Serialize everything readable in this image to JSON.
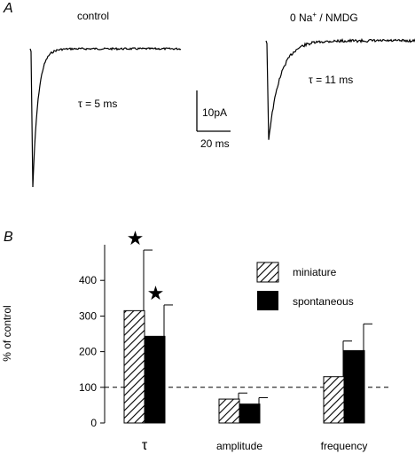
{
  "panel_a": {
    "label": "A",
    "control_label": "control",
    "treatment_label_prefix": "0 Na",
    "treatment_label_sup": "+",
    "treatment_label_suffix": " / NMDG",
    "tau_control": "τ = 5 ms",
    "tau_treatment": "τ = 11 ms",
    "scale_current": "10pA",
    "scale_time": "20 ms"
  },
  "panel_b": {
    "label": "B"
  },
  "chart_data": {
    "type": "bar",
    "ylabel": "% of control",
    "ylim": [
      0,
      500
    ],
    "yticks": [
      0,
      100,
      200,
      300,
      400
    ],
    "categories": [
      "τ",
      "amplitude",
      "frequency"
    ],
    "series": [
      {
        "name": "miniature",
        "values": [
          315,
          67,
          130
        ],
        "errors": [
          170,
          17,
          100
        ],
        "pattern": "hatched",
        "significant": [
          true,
          false,
          false
        ]
      },
      {
        "name": "spontaneous",
        "values": [
          243,
          53,
          203
        ],
        "errors": [
          88,
          18,
          75
        ],
        "pattern": "solid",
        "significant": [
          true,
          false,
          false
        ]
      }
    ],
    "reference_line": 100,
    "legend_position": "top-right",
    "significance_marker": "★",
    "colors": {
      "bars": "#000000",
      "background": "#ffffff"
    }
  }
}
